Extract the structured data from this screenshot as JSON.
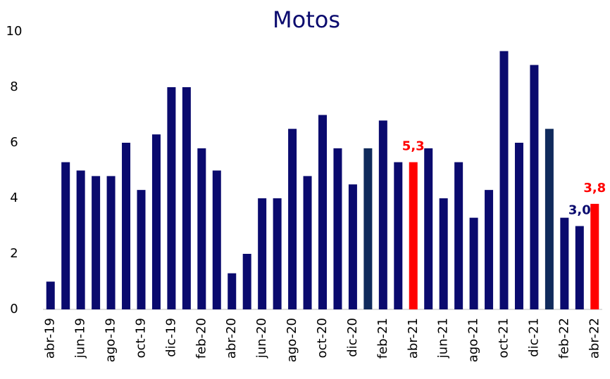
{
  "chart_data": {
    "type": "bar",
    "title": "Motos",
    "categories": [
      "abr-19",
      null,
      "jun-19",
      null,
      "ago-19",
      null,
      "oct-19",
      null,
      "dic-19",
      null,
      "feb-20",
      null,
      "abr-20",
      null,
      "jun-20",
      null,
      "ago-20",
      null,
      "oct-20",
      null,
      "dic-20",
      null,
      "feb-21",
      null,
      "abr-21",
      null,
      "jun-21",
      null,
      "ago-21",
      null,
      "oct-21",
      null,
      "dic-21",
      null,
      "feb-22",
      null,
      "abr-22"
    ],
    "values": [
      1.0,
      5.3,
      5.0,
      4.8,
      4.8,
      6.0,
      4.3,
      6.3,
      8.0,
      8.0,
      5.8,
      5.0,
      1.3,
      2.0,
      4.0,
      4.0,
      6.5,
      4.8,
      7.0,
      5.8,
      4.5,
      5.8,
      6.8,
      5.3,
      5.3,
      5.8,
      4.0,
      5.3,
      3.3,
      4.3,
      9.3,
      6.0,
      8.8,
      6.5,
      3.3,
      3.0,
      3.8
    ],
    "value_labels": [
      null,
      null,
      null,
      null,
      null,
      null,
      null,
      null,
      null,
      null,
      null,
      null,
      null,
      null,
      null,
      null,
      null,
      null,
      null,
      null,
      null,
      null,
      null,
      null,
      "5,3",
      null,
      null,
      null,
      null,
      null,
      null,
      null,
      null,
      null,
      null,
      "3,0",
      "3,8"
    ],
    "colors": [
      "#0a0a6e",
      "#0a0a6e",
      "#0a0a6e",
      "#0a0a6e",
      "#0a0a6e",
      "#0a0a6e",
      "#0a0a6e",
      "#0a0a6e",
      "#0a0a6e",
      "#0a0a6e",
      "#0a0a6e",
      "#0a0a6e",
      "#0a0a6e",
      "#0a0a6e",
      "#0a0a6e",
      "#0a0a6e",
      "#0a0a6e",
      "#0a0a6e",
      "#0a0a6e",
      "#0a0a6e",
      "#0a0a6e",
      "#102a5c",
      "#0a0a6e",
      "#0a0a6e",
      "#ff0000",
      "#0a0a6e",
      "#0a0a6e",
      "#0a0a6e",
      "#0a0a6e",
      "#0a0a6e",
      "#0a0a6e",
      "#0a0a6e",
      "#0a0a6e",
      "#102a5c",
      "#0a0a6e",
      "#0a0a6e",
      "#ff0000"
    ],
    "ylim": [
      0,
      10
    ],
    "yticks": [
      0,
      2,
      4,
      6,
      8,
      10
    ]
  }
}
